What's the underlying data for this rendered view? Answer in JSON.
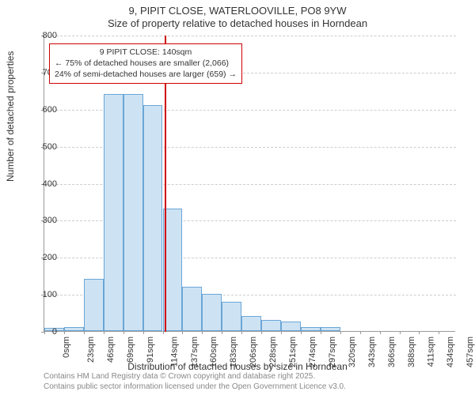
{
  "title": "9, PIPIT CLOSE, WATERLOOVILLE, PO8 9YW",
  "subtitle": "Size of property relative to detached houses in Horndean",
  "ylabel": "Number of detached properties",
  "xlabel": "Distribution of detached houses by size in Horndean",
  "chart": {
    "type": "histogram",
    "background_color": "#ffffff",
    "grid_color": "#cccccc",
    "axis_color": "#999999",
    "bar_fill": "#cde3f4",
    "bar_stroke": "#6ba6d6",
    "ylim": [
      0,
      800
    ],
    "ytick_step": 100,
    "xtick_step": 23,
    "xmax": 480,
    "bar_width_sqm": 23,
    "categories": [
      "0sqm",
      "23sqm",
      "46sqm",
      "69sqm",
      "91sqm",
      "114sqm",
      "137sqm",
      "160sqm",
      "183sqm",
      "206sqm",
      "228sqm",
      "251sqm",
      "274sqm",
      "297sqm",
      "320sqm",
      "343sqm",
      "366sqm",
      "388sqm",
      "411sqm",
      "434sqm",
      "457sqm"
    ],
    "values": [
      8,
      10,
      140,
      640,
      640,
      610,
      330,
      120,
      100,
      80,
      40,
      30,
      25,
      10,
      10,
      0,
      0,
      0,
      0,
      0,
      0
    ],
    "title_fontsize": 13,
    "label_fontsize": 12,
    "tick_fontsize": 11
  },
  "marker": {
    "x_sqm": 140,
    "line_color": "#d00000",
    "box_border": "#d00000",
    "box_bg": "#ffffff",
    "line1": "9 PIPIT CLOSE: 140sqm",
    "line2": "← 75% of detached houses are smaller (2,066)",
    "line3": "24% of semi-detached houses are larger (659) →"
  },
  "footer1": "Contains HM Land Registry data © Crown copyright and database right 2025.",
  "footer2": "Contains public sector information licensed under the Open Government Licence v3.0."
}
